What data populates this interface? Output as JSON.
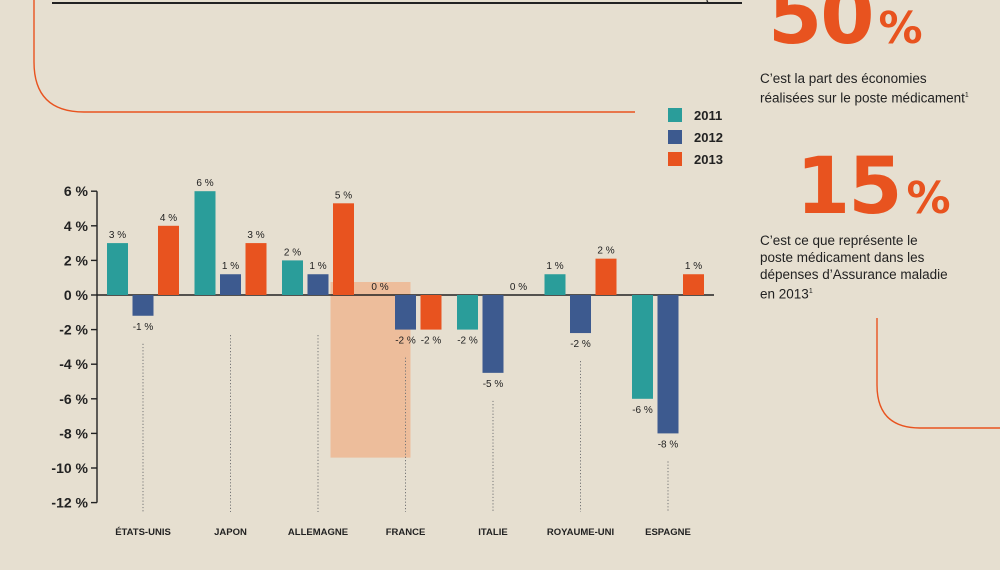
{
  "colors": {
    "background": "#e6dfd0",
    "accent": "#e8531f",
    "s2011": "#2a9d9a",
    "s2012": "#3d5a8f",
    "s2013": "#e8531f",
    "highlight": "#edbd9b"
  },
  "stats": [
    {
      "value": "50",
      "unit": "%",
      "text_lines": [
        "C’est la part des économies",
        "réalisées sur le poste médicament"
      ],
      "footnote": "1"
    },
    {
      "value": "15",
      "unit": "%",
      "text_lines": [
        "C’est ce que représente le",
        "poste médicament dans les",
        "dépenses d’Assurance maladie",
        "en 2013"
      ],
      "footnote": "1"
    }
  ],
  "chart_data": {
    "type": "bar",
    "title": "",
    "xlabel": "",
    "ylabel": "",
    "ylim": [
      -12,
      6
    ],
    "yticks": [
      6,
      4,
      2,
      0,
      -2,
      -4,
      -6,
      -8,
      -10,
      -12
    ],
    "ytick_labels": [
      "6 %",
      "4 %",
      "2 %",
      "0 %",
      "-2 %",
      "-4 %",
      "-6 %",
      "-8 %",
      "-10 %",
      "-12 %"
    ],
    "categories": [
      "ÉTATS-UNIS",
      "JAPON",
      "ALLEMAGNE",
      "FRANCE",
      "ITALIE",
      "ROYAUME-UNI",
      "ESPAGNE"
    ],
    "highlight_category": "FRANCE",
    "legend_position": "top-right",
    "series": [
      {
        "name": "2011",
        "values": [
          3,
          6,
          2,
          0,
          -2,
          1.2,
          -6
        ],
        "labels": [
          "3 %",
          "6 %",
          "2 %",
          "0 %",
          "-2 %",
          "1 %",
          "-6 %"
        ]
      },
      {
        "name": "2012",
        "values": [
          -1.2,
          1.2,
          1.2,
          -2,
          -4.5,
          -2.2,
          -8
        ],
        "labels": [
          "-1 %",
          "1 %",
          "1 %",
          "-2 %",
          "-5 %",
          "-2 %",
          "-8 %"
        ]
      },
      {
        "name": "2013",
        "values": [
          4,
          3,
          5.3,
          -2,
          0,
          2.1,
          1.2
        ],
        "labels": [
          "4 %",
          "3 %",
          "5 %",
          "-2 %",
          "0 %",
          "2 %",
          "1 %"
        ]
      }
    ]
  }
}
